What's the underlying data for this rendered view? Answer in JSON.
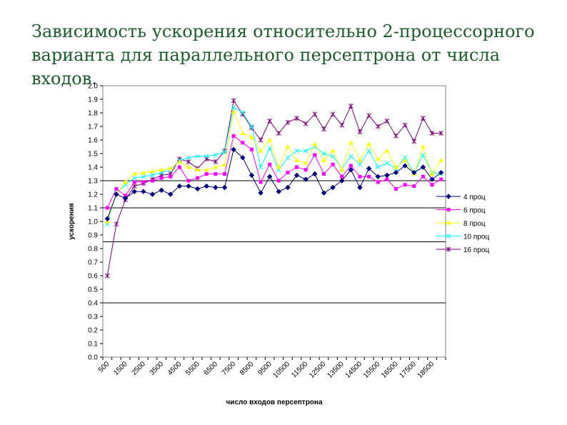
{
  "slide": {
    "title_line1": "Зависимость ускорения относительно 2-процессорного",
    "title_line2": "варианта для параллельного персептрона от числа входов."
  },
  "chart_data": {
    "type": "line",
    "title": "",
    "xlabel": "число входов персептрона",
    "ylabel": "ускорения",
    "ylim": [
      0,
      2
    ],
    "yticks": [
      "0.0",
      "0.1",
      "0.2",
      "0.3",
      "0.4",
      "0.5",
      "0.6",
      "0.7",
      "0.8",
      "0.9",
      "1.0",
      "1.1",
      "1.2",
      "1.3",
      "1.4",
      "1.5",
      "1.6",
      "1.7",
      "1.8",
      "1.9",
      "2.0"
    ],
    "xticks": [
      "500",
      "1500",
      "2500",
      "3500",
      "4500",
      "5500",
      "6500",
      "7500",
      "8500",
      "9500",
      "10500",
      "11500",
      "12500",
      "13500",
      "14500",
      "15500",
      "16500",
      "17500",
      "18500"
    ],
    "horizontal_gridlines": [
      0.4,
      0.85,
      1.1,
      1.3
    ],
    "legend_position": "right",
    "x": [
      500,
      1000,
      1500,
      2000,
      2500,
      3000,
      3500,
      4000,
      4500,
      5000,
      5500,
      6000,
      6500,
      7000,
      7500,
      8000,
      8500,
      9000,
      9500,
      10000,
      10500,
      11000,
      11500,
      12000,
      12500,
      13000,
      13500,
      14000,
      14500,
      15000,
      15500,
      16000,
      16500,
      17000,
      17500,
      18000,
      18500,
      19000
    ],
    "series": [
      {
        "name": "4 проц",
        "color": "#000080",
        "marker": "diamond",
        "values": [
          1.02,
          1.2,
          1.17,
          1.22,
          1.22,
          1.2,
          1.23,
          1.2,
          1.26,
          1.26,
          1.24,
          1.26,
          1.25,
          1.25,
          1.53,
          1.47,
          1.34,
          1.21,
          1.33,
          1.22,
          1.25,
          1.34,
          1.31,
          1.35,
          1.21,
          1.25,
          1.3,
          1.38,
          1.25,
          1.39,
          1.33,
          1.34,
          1.36,
          1.41,
          1.36,
          1.4,
          1.31,
          1.36
        ]
      },
      {
        "name": "6 проц",
        "color": "#ff00ff",
        "marker": "square",
        "values": [
          1.1,
          1.24,
          1.19,
          1.29,
          1.29,
          1.3,
          1.32,
          1.33,
          1.4,
          1.3,
          1.32,
          1.35,
          1.35,
          1.35,
          1.63,
          1.58,
          1.53,
          1.29,
          1.42,
          1.3,
          1.36,
          1.4,
          1.38,
          1.49,
          1.35,
          1.42,
          1.33,
          1.41,
          1.33,
          1.33,
          1.29,
          1.31,
          1.24,
          1.27,
          1.26,
          1.33,
          1.27,
          1.31
        ]
      },
      {
        "name": "8 проц",
        "color": "#ffff00",
        "marker": "triangle",
        "values": [
          1.0,
          1.2,
          1.29,
          1.35,
          1.36,
          1.37,
          1.38,
          1.39,
          1.44,
          1.4,
          1.38,
          1.38,
          1.4,
          1.42,
          1.81,
          1.65,
          1.62,
          1.52,
          1.6,
          1.4,
          1.55,
          1.45,
          1.43,
          1.57,
          1.45,
          1.52,
          1.38,
          1.58,
          1.45,
          1.57,
          1.46,
          1.52,
          1.4,
          1.45,
          1.35,
          1.55,
          1.35,
          1.45
        ]
      },
      {
        "name": "10 проц",
        "color": "#00ffff",
        "marker": "x",
        "values": [
          0.98,
          1.21,
          1.27,
          1.32,
          1.33,
          1.34,
          1.36,
          1.38,
          1.45,
          1.47,
          1.48,
          1.48,
          1.49,
          1.51,
          1.84,
          1.8,
          1.7,
          1.4,
          1.54,
          1.38,
          1.47,
          1.52,
          1.52,
          1.55,
          1.5,
          1.48,
          1.39,
          1.48,
          1.42,
          1.52,
          1.4,
          1.43,
          1.39,
          1.47,
          1.36,
          1.49,
          1.36,
          1.35
        ]
      },
      {
        "name": "16 проц",
        "color": "#800080",
        "marker": "star",
        "values": [
          0.6,
          0.98,
          1.16,
          1.26,
          1.28,
          1.31,
          1.34,
          1.35,
          1.46,
          1.44,
          1.39,
          1.46,
          1.44,
          1.52,
          1.89,
          1.79,
          1.69,
          1.6,
          1.74,
          1.65,
          1.73,
          1.76,
          1.72,
          1.79,
          1.68,
          1.79,
          1.71,
          1.85,
          1.66,
          1.78,
          1.7,
          1.74,
          1.63,
          1.71,
          1.59,
          1.76,
          1.65,
          1.65
        ]
      }
    ]
  }
}
